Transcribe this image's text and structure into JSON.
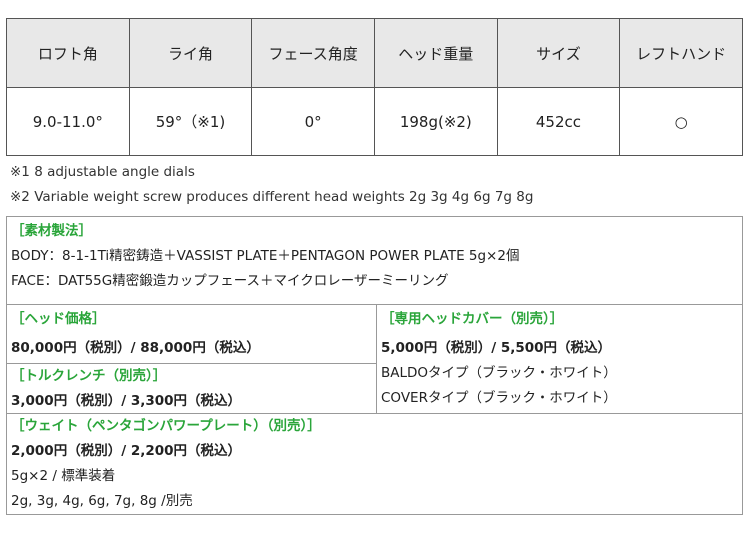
{
  "spec_table": {
    "headers": [
      "ロフト角",
      "ライ角",
      "フェース角度",
      "ヘッド重量",
      "サイズ",
      "レフトハンド"
    ],
    "values": [
      "9.0-11.0°",
      "59°（※1)",
      "0°",
      "198g(※2)",
      "452cc",
      "○"
    ]
  },
  "notes": [
    "※1  8 adjustable angle dials",
    "※2 Variable weight screw produces different head weights 2g 3g 4g 6g 7g 8g"
  ],
  "material": {
    "heading": "［素材製法］",
    "lines": [
      "BODY：8-1-1Ti精密鋳造＋VASSIST PLATE＋PENTAGON POWER PLATE 5g×2個",
      "FACE：DAT55G精密鍛造カップフェース＋マイクロレーザーミーリング"
    ]
  },
  "head_price": {
    "heading": "［ヘッド価格］",
    "price": "80,000円（税別）/ 88,000円（税込）"
  },
  "torque_wrench": {
    "heading": "［トルクレンチ（別売）］",
    "price": "3,000円（税別）/ 3,300円（税込）"
  },
  "head_cover": {
    "heading": "［専用ヘッドカバー（別売）］",
    "price": "5,000円（税別）/ 5,500円（税込）",
    "lines": [
      "BALDOタイプ（ブラック・ホワイト）",
      "COVERタイプ（ブラック・ホワイト）"
    ]
  },
  "weight": {
    "heading": "［ウェイト（ペンタゴンパワープレート）（別売）］",
    "price": "2,000円（税別）/ 2,200円（税込）",
    "lines": [
      "5g×2 / 標準装着",
      "2g, 3g, 4g, 6g, 7g, 8g /別売"
    ]
  },
  "colors": {
    "heading": "#2aa53a",
    "header_bg": "#e8e8e8"
  }
}
